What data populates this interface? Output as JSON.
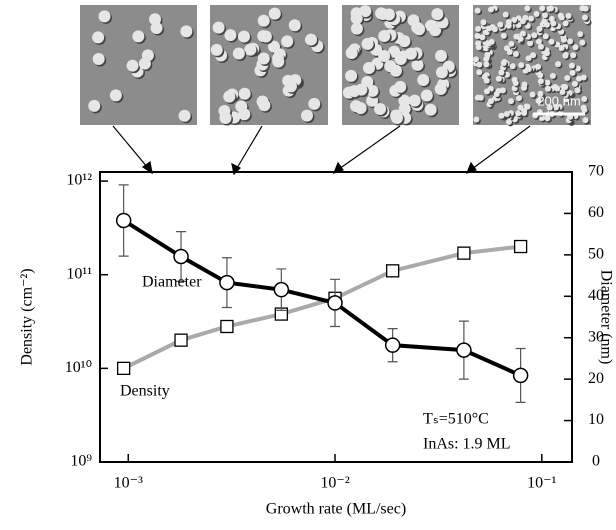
{
  "chart_data": {
    "type": "line",
    "images": [
      {
        "label": null
      },
      {
        "label": null
      },
      {
        "label": null
      },
      {
        "label": "200 nm"
      }
    ],
    "xlabel": "Growth rate (ML/sec)",
    "ylabel": "Density (cm⁻²)",
    "y2label": "Diameter (nm)",
    "annotations": [
      "Tₛ=510°C",
      "InAs: 1.9 ML"
    ],
    "xscale": "log",
    "yscale": "log",
    "xlim": [
      0.00073,
      0.14
    ],
    "xticks": [
      {
        "value": 0.001,
        "label": "10⁻³"
      },
      {
        "value": 0.01,
        "label": "10⁻²"
      },
      {
        "value": 0.1,
        "label": "10⁻¹"
      }
    ],
    "ylim": [
      1000000000,
      1250000000000
    ],
    "yticks": [
      {
        "value": 1000000000,
        "label": "10⁹"
      },
      {
        "value": 10000000000,
        "label": "10¹⁰"
      },
      {
        "value": 100000000000,
        "label": "10¹¹"
      },
      {
        "value": 1000000000000,
        "label": "10¹²"
      }
    ],
    "y2lim": [
      0,
      70
    ],
    "y2ticks": [
      0,
      10,
      20,
      30,
      40,
      50,
      60,
      70
    ],
    "x": [
      0.00095,
      0.0018,
      0.003,
      0.0055,
      0.01,
      0.019,
      0.042,
      0.079
    ],
    "series": [
      {
        "name": "Diameter",
        "color": "#000000",
        "marker": "circle",
        "axis": "y2",
        "values": [
          58.3,
          49.6,
          43.3,
          41.6,
          38.4,
          28.2,
          27.0,
          20.9
        ],
        "errors": [
          8.6,
          6,
          6,
          5,
          5.7,
          4,
          7,
          6.5
        ]
      },
      {
        "name": "Density",
        "color": "#aaaaaa",
        "marker": "square",
        "values": [
          10000000000,
          20000000000,
          28000000000,
          38000000000,
          56000000000,
          110000000000,
          170000000000,
          200000000000
        ]
      }
    ]
  }
}
